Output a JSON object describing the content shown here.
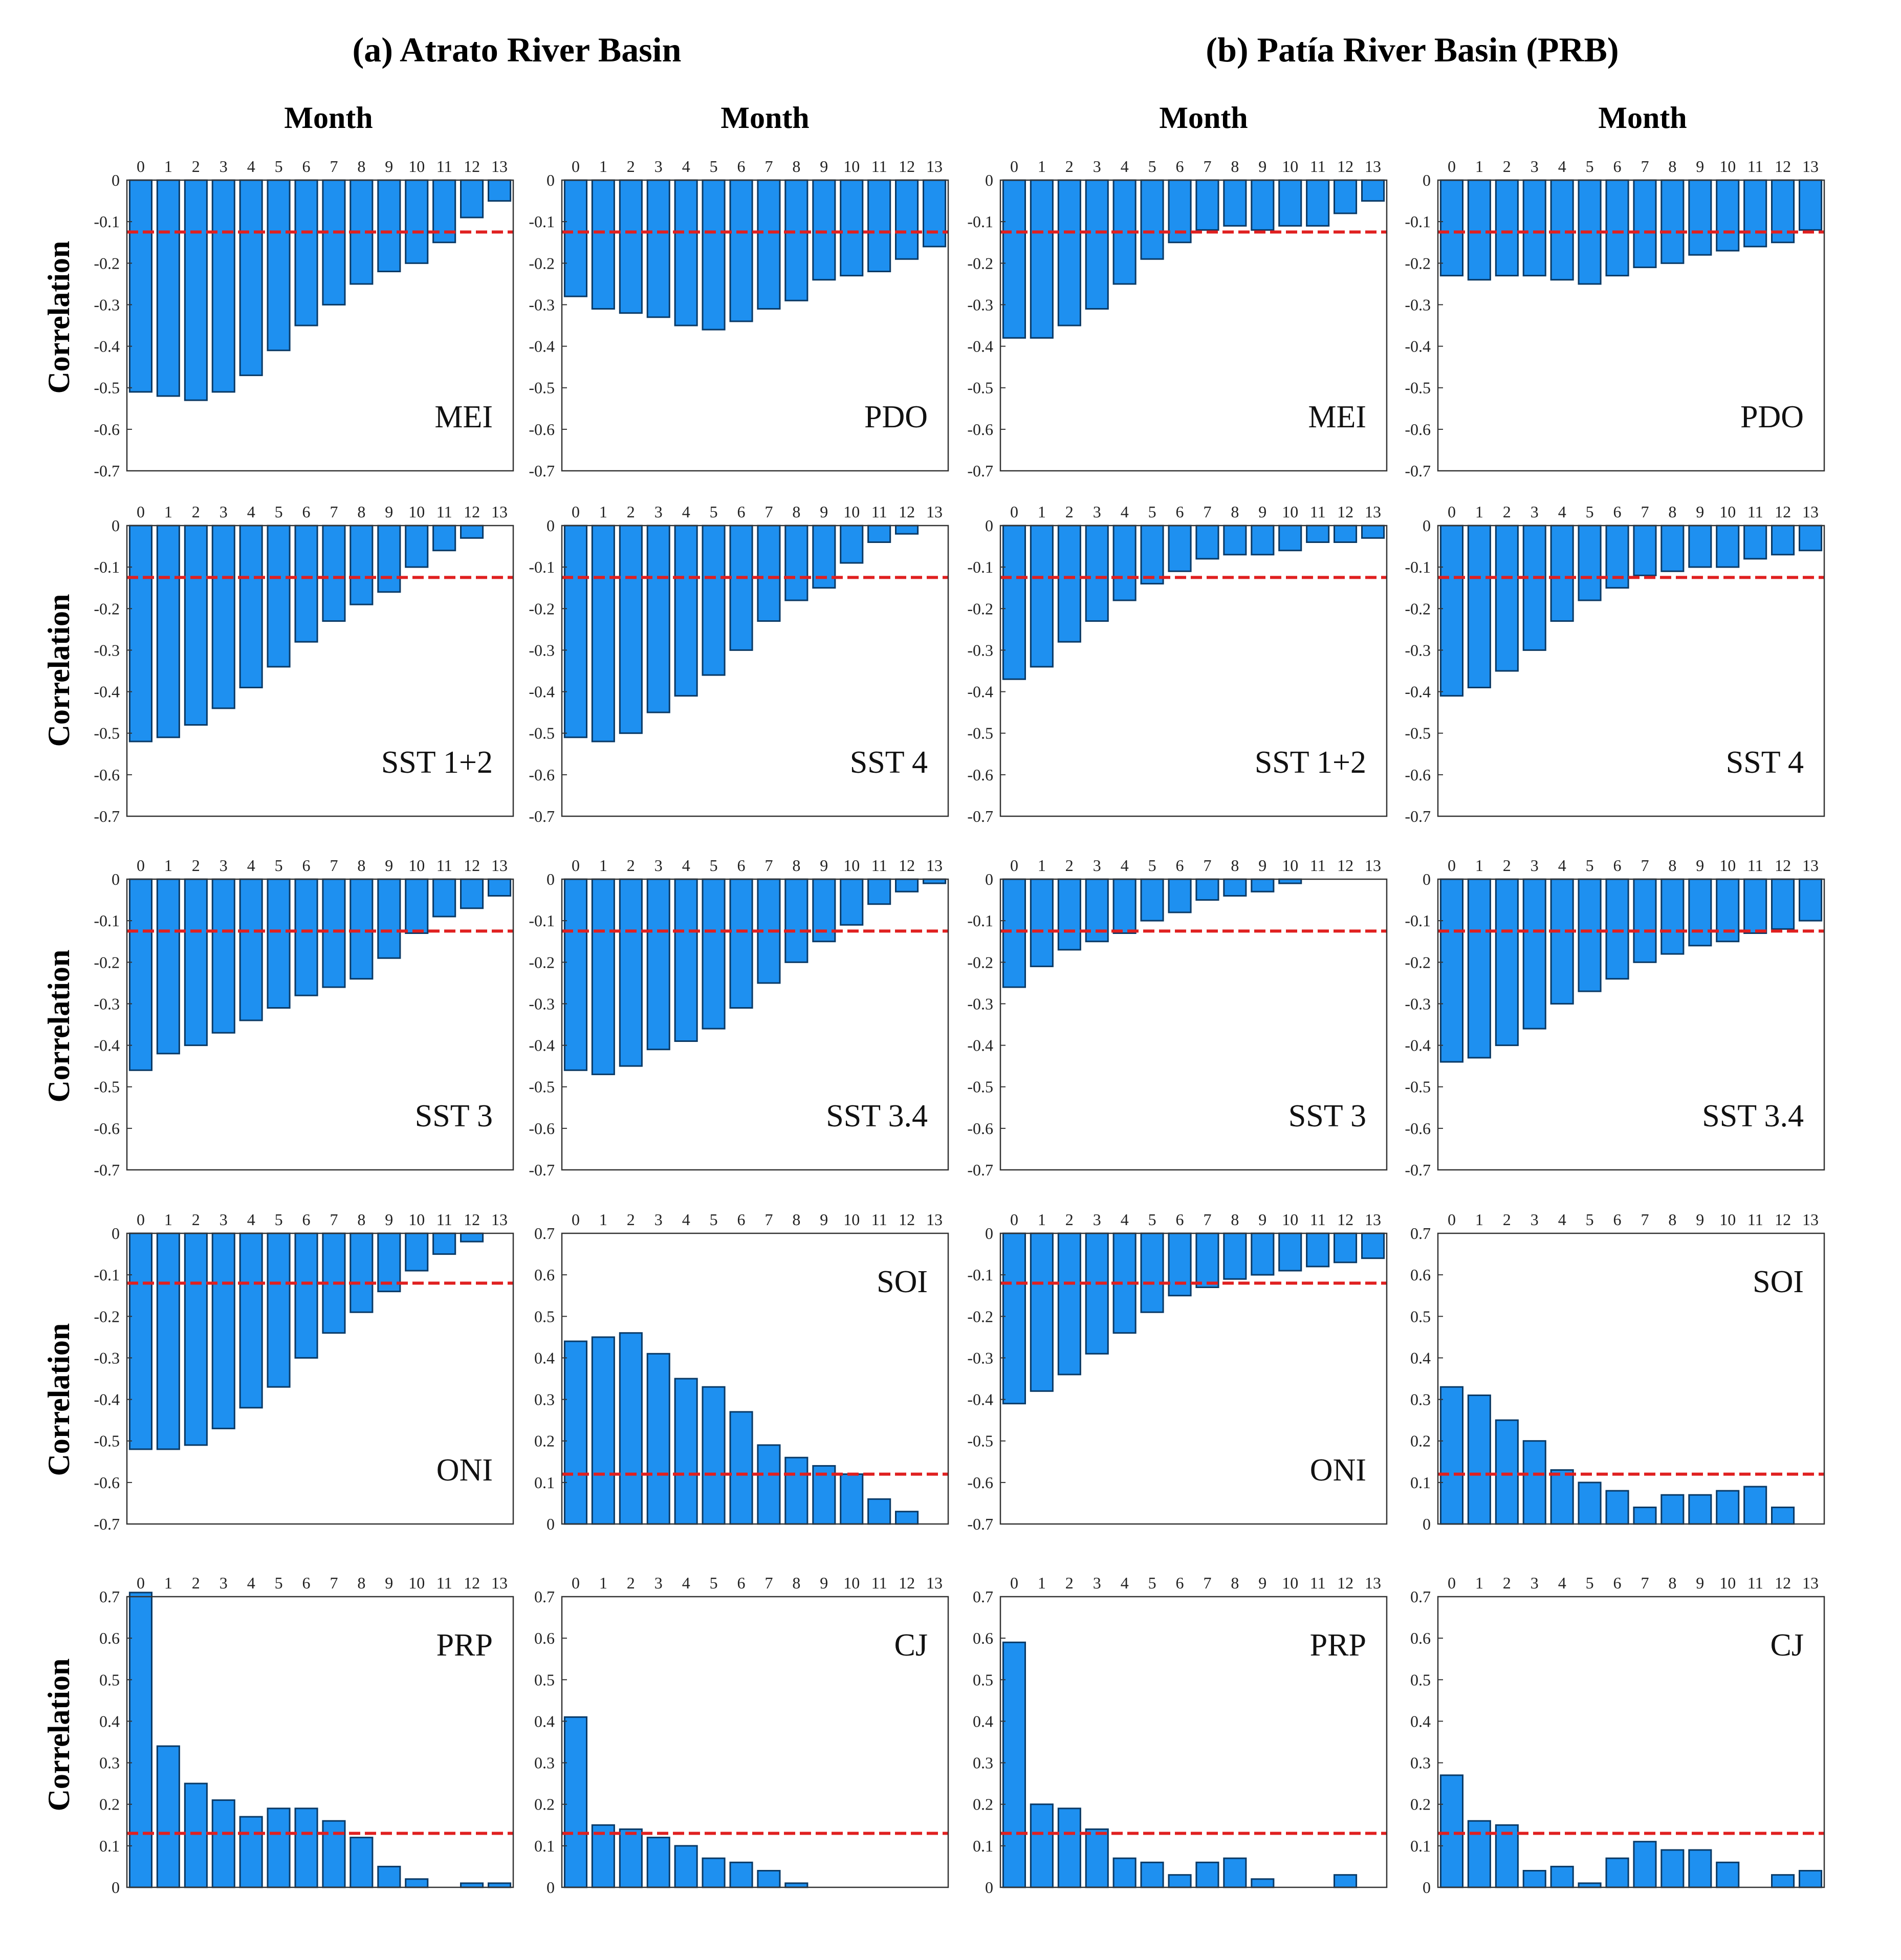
{
  "figure": {
    "left_title": "(a) Atrato River Basin",
    "right_title": "(b) Patía River Basin (PRB)",
    "column_xlabel": "Month",
    "row_ylabel": "Correlation",
    "bar_color": "#1e90f0",
    "bar_edge_color": "#0a3a66",
    "threshold_color": "#e02020"
  },
  "chart_data": [
    {
      "type": "bar",
      "basin": "Atrato River Basin",
      "title": "MEI",
      "xlabel": "Month",
      "ylabel": "Correlation",
      "categories": [
        "0",
        "1",
        "2",
        "3",
        "4",
        "5",
        "6",
        "7",
        "8",
        "9",
        "10",
        "11",
        "12",
        "13"
      ],
      "values": [
        -0.51,
        -0.52,
        -0.53,
        -0.51,
        -0.47,
        -0.41,
        -0.35,
        -0.3,
        -0.25,
        -0.22,
        -0.2,
        -0.15,
        -0.09,
        -0.05
      ],
      "ylim": [
        -0.7,
        0
      ],
      "yticks": [
        "0",
        "-0.1",
        "-0.2",
        "-0.3",
        "-0.4",
        "-0.5",
        "-0.6",
        "-0.7"
      ],
      "threshold": -0.125,
      "label_position": "bottom-right"
    },
    {
      "type": "bar",
      "basin": "Atrato River Basin",
      "title": "PDO",
      "xlabel": "Month",
      "ylabel": "Correlation",
      "categories": [
        "0",
        "1",
        "2",
        "3",
        "4",
        "5",
        "6",
        "7",
        "8",
        "9",
        "10",
        "11",
        "12",
        "13"
      ],
      "values": [
        -0.28,
        -0.31,
        -0.32,
        -0.33,
        -0.35,
        -0.36,
        -0.34,
        -0.31,
        -0.29,
        -0.24,
        -0.23,
        -0.22,
        -0.19,
        -0.16
      ],
      "ylim": [
        -0.7,
        0
      ],
      "yticks": [
        "0",
        "-0.1",
        "-0.2",
        "-0.3",
        "-0.4",
        "-0.5",
        "-0.6",
        "-0.7"
      ],
      "threshold": -0.125,
      "label_position": "bottom-right"
    },
    {
      "type": "bar",
      "basin": "Patía River Basin (PRB)",
      "title": "MEI",
      "xlabel": "Month",
      "ylabel": "Correlation",
      "categories": [
        "0",
        "1",
        "2",
        "3",
        "4",
        "5",
        "6",
        "7",
        "8",
        "9",
        "10",
        "11",
        "12",
        "13"
      ],
      "values": [
        -0.38,
        -0.38,
        -0.35,
        -0.31,
        -0.25,
        -0.19,
        -0.15,
        -0.12,
        -0.11,
        -0.12,
        -0.11,
        -0.11,
        -0.08,
        -0.05
      ],
      "ylim": [
        -0.7,
        0
      ],
      "yticks": [
        "0",
        "-0.1",
        "-0.2",
        "-0.3",
        "-0.4",
        "-0.5",
        "-0.6",
        "-0.7"
      ],
      "threshold": -0.125,
      "label_position": "bottom-right"
    },
    {
      "type": "bar",
      "basin": "Patía River Basin (PRB)",
      "title": "PDO",
      "xlabel": "Month",
      "ylabel": "Correlation",
      "categories": [
        "0",
        "1",
        "2",
        "3",
        "4",
        "5",
        "6",
        "7",
        "8",
        "9",
        "10",
        "11",
        "12",
        "13"
      ],
      "values": [
        -0.23,
        -0.24,
        -0.23,
        -0.23,
        -0.24,
        -0.25,
        -0.23,
        -0.21,
        -0.2,
        -0.18,
        -0.17,
        -0.16,
        -0.15,
        -0.12
      ],
      "ylim": [
        -0.7,
        0
      ],
      "yticks": [
        "0",
        "-0.1",
        "-0.2",
        "-0.3",
        "-0.4",
        "-0.5",
        "-0.6",
        "-0.7"
      ],
      "threshold": -0.125,
      "label_position": "bottom-right"
    },
    {
      "type": "bar",
      "basin": "Atrato River Basin",
      "title": "SST 1+2",
      "xlabel": "Month",
      "ylabel": "Correlation",
      "categories": [
        "0",
        "1",
        "2",
        "3",
        "4",
        "5",
        "6",
        "7",
        "8",
        "9",
        "10",
        "11",
        "12",
        "13"
      ],
      "values": [
        -0.52,
        -0.51,
        -0.48,
        -0.44,
        -0.39,
        -0.34,
        -0.28,
        -0.23,
        -0.19,
        -0.16,
        -0.1,
        -0.06,
        -0.03,
        0
      ],
      "ylim": [
        -0.7,
        0
      ],
      "yticks": [
        "0",
        "-0.1",
        "-0.2",
        "-0.3",
        "-0.4",
        "-0.5",
        "-0.6",
        "-0.7"
      ],
      "threshold": -0.125,
      "label_position": "bottom-right"
    },
    {
      "type": "bar",
      "basin": "Atrato River Basin",
      "title": "SST 4",
      "xlabel": "Month",
      "ylabel": "Correlation",
      "categories": [
        "0",
        "1",
        "2",
        "3",
        "4",
        "5",
        "6",
        "7",
        "8",
        "9",
        "10",
        "11",
        "12",
        "13"
      ],
      "values": [
        -0.51,
        -0.52,
        -0.5,
        -0.45,
        -0.41,
        -0.36,
        -0.3,
        -0.23,
        -0.18,
        -0.15,
        -0.09,
        -0.04,
        -0.02,
        0
      ],
      "ylim": [
        -0.7,
        0
      ],
      "yticks": [
        "0",
        "-0.1",
        "-0.2",
        "-0.3",
        "-0.4",
        "-0.5",
        "-0.6",
        "-0.7"
      ],
      "threshold": -0.125,
      "label_position": "bottom-right"
    },
    {
      "type": "bar",
      "basin": "Patía River Basin (PRB)",
      "title": "SST 1+2",
      "xlabel": "Month",
      "ylabel": "Correlation",
      "categories": [
        "0",
        "1",
        "2",
        "3",
        "4",
        "5",
        "6",
        "7",
        "8",
        "9",
        "10",
        "11",
        "12",
        "13"
      ],
      "values": [
        -0.37,
        -0.34,
        -0.28,
        -0.23,
        -0.18,
        -0.14,
        -0.11,
        -0.08,
        -0.07,
        -0.07,
        -0.06,
        -0.04,
        -0.04,
        -0.03
      ],
      "ylim": [
        -0.7,
        0
      ],
      "yticks": [
        "0",
        "-0.1",
        "-0.2",
        "-0.3",
        "-0.4",
        "-0.5",
        "-0.6",
        "-0.7"
      ],
      "threshold": -0.125,
      "label_position": "bottom-right"
    },
    {
      "type": "bar",
      "basin": "Patía River Basin (PRB)",
      "title": "SST 4",
      "xlabel": "Month",
      "ylabel": "Correlation",
      "categories": [
        "0",
        "1",
        "2",
        "3",
        "4",
        "5",
        "6",
        "7",
        "8",
        "9",
        "10",
        "11",
        "12",
        "13"
      ],
      "values": [
        -0.41,
        -0.39,
        -0.35,
        -0.3,
        -0.23,
        -0.18,
        -0.15,
        -0.12,
        -0.11,
        -0.1,
        -0.1,
        -0.08,
        -0.07,
        -0.06
      ],
      "ylim": [
        -0.7,
        0
      ],
      "yticks": [
        "0",
        "-0.1",
        "-0.2",
        "-0.3",
        "-0.4",
        "-0.5",
        "-0.6",
        "-0.7"
      ],
      "threshold": -0.125,
      "label_position": "bottom-right"
    },
    {
      "type": "bar",
      "basin": "Atrato River Basin",
      "title": "SST 3",
      "xlabel": "Month",
      "ylabel": "Correlation",
      "categories": [
        "0",
        "1",
        "2",
        "3",
        "4",
        "5",
        "6",
        "7",
        "8",
        "9",
        "10",
        "11",
        "12",
        "13"
      ],
      "values": [
        -0.46,
        -0.42,
        -0.4,
        -0.37,
        -0.34,
        -0.31,
        -0.28,
        -0.26,
        -0.24,
        -0.19,
        -0.13,
        -0.09,
        -0.07,
        -0.04
      ],
      "ylim": [
        -0.7,
        0
      ],
      "yticks": [
        "0",
        "-0.1",
        "-0.2",
        "-0.3",
        "-0.4",
        "-0.5",
        "-0.6",
        "-0.7"
      ],
      "threshold": -0.125,
      "label_position": "bottom-right"
    },
    {
      "type": "bar",
      "basin": "Atrato River Basin",
      "title": "SST 3.4",
      "xlabel": "Month",
      "ylabel": "Correlation",
      "categories": [
        "0",
        "1",
        "2",
        "3",
        "4",
        "5",
        "6",
        "7",
        "8",
        "9",
        "10",
        "11",
        "12",
        "13"
      ],
      "values": [
        -0.46,
        -0.47,
        -0.45,
        -0.41,
        -0.39,
        -0.36,
        -0.31,
        -0.25,
        -0.2,
        -0.15,
        -0.11,
        -0.06,
        -0.03,
        -0.01
      ],
      "ylim": [
        -0.7,
        0
      ],
      "yticks": [
        "0",
        "-0.1",
        "-0.2",
        "-0.3",
        "-0.4",
        "-0.5",
        "-0.6",
        "-0.7"
      ],
      "threshold": -0.125,
      "label_position": "bottom-right"
    },
    {
      "type": "bar",
      "basin": "Patía River Basin (PRB)",
      "title": "SST 3",
      "xlabel": "Month",
      "ylabel": "Correlation",
      "categories": [
        "0",
        "1",
        "2",
        "3",
        "4",
        "5",
        "6",
        "7",
        "8",
        "9",
        "10",
        "11",
        "12",
        "13"
      ],
      "values": [
        -0.26,
        -0.21,
        -0.17,
        -0.15,
        -0.13,
        -0.1,
        -0.08,
        -0.05,
        -0.04,
        -0.03,
        -0.01,
        0,
        0,
        0
      ],
      "ylim": [
        -0.7,
        0
      ],
      "yticks": [
        "0",
        "-0.1",
        "-0.2",
        "-0.3",
        "-0.4",
        "-0.5",
        "-0.6",
        "-0.7"
      ],
      "threshold": -0.125,
      "label_position": "bottom-right"
    },
    {
      "type": "bar",
      "basin": "Patía River Basin (PRB)",
      "title": "SST 3.4",
      "xlabel": "Month",
      "ylabel": "Correlation",
      "categories": [
        "0",
        "1",
        "2",
        "3",
        "4",
        "5",
        "6",
        "7",
        "8",
        "9",
        "10",
        "11",
        "12",
        "13"
      ],
      "values": [
        -0.44,
        -0.43,
        -0.4,
        -0.36,
        -0.3,
        -0.27,
        -0.24,
        -0.2,
        -0.18,
        -0.16,
        -0.15,
        -0.13,
        -0.12,
        -0.1
      ],
      "ylim": [
        -0.7,
        0
      ],
      "yticks": [
        "0",
        "-0.1",
        "-0.2",
        "-0.3",
        "-0.4",
        "-0.5",
        "-0.6",
        "-0.7"
      ],
      "threshold": -0.125,
      "label_position": "bottom-right"
    },
    {
      "type": "bar",
      "basin": "Atrato River Basin",
      "title": "ONI",
      "xlabel": "Month",
      "ylabel": "Correlation",
      "categories": [
        "0",
        "1",
        "2",
        "3",
        "4",
        "5",
        "6",
        "7",
        "8",
        "9",
        "10",
        "11",
        "12",
        "13"
      ],
      "values": [
        -0.52,
        -0.52,
        -0.51,
        -0.47,
        -0.42,
        -0.37,
        -0.3,
        -0.24,
        -0.19,
        -0.14,
        -0.09,
        -0.05,
        -0.02,
        0
      ],
      "ylim": [
        -0.7,
        0
      ],
      "yticks": [
        "0",
        "-0.1",
        "-0.2",
        "-0.3",
        "-0.4",
        "-0.5",
        "-0.6",
        "-0.7"
      ],
      "threshold": -0.12,
      "label_position": "bottom-right"
    },
    {
      "type": "bar",
      "basin": "Atrato River Basin",
      "title": "SOI",
      "xlabel": "Month",
      "ylabel": "Correlation",
      "categories": [
        "0",
        "1",
        "2",
        "3",
        "4",
        "5",
        "6",
        "7",
        "8",
        "9",
        "10",
        "11",
        "12",
        "13"
      ],
      "values": [
        0.44,
        0.45,
        0.46,
        0.41,
        0.35,
        0.33,
        0.27,
        0.19,
        0.16,
        0.14,
        0.12,
        0.06,
        0.03,
        0
      ],
      "ylim": [
        0,
        0.7
      ],
      "yticks": [
        "0.7",
        "0.6",
        "0.5",
        "0.4",
        "0.3",
        "0.2",
        "0.1",
        "0"
      ],
      "threshold": 0.12,
      "label_position": "top-right"
    },
    {
      "type": "bar",
      "basin": "Patía River Basin (PRB)",
      "title": "ONI",
      "xlabel": "Month",
      "ylabel": "Correlation",
      "categories": [
        "0",
        "1",
        "2",
        "3",
        "4",
        "5",
        "6",
        "7",
        "8",
        "9",
        "10",
        "11",
        "12",
        "13"
      ],
      "values": [
        -0.41,
        -0.38,
        -0.34,
        -0.29,
        -0.24,
        -0.19,
        -0.15,
        -0.13,
        -0.11,
        -0.1,
        -0.09,
        -0.08,
        -0.07,
        -0.06
      ],
      "ylim": [
        -0.7,
        0
      ],
      "yticks": [
        "0",
        "-0.1",
        "-0.2",
        "-0.3",
        "-0.4",
        "-0.5",
        "-0.6",
        "-0.7"
      ],
      "threshold": -0.12,
      "label_position": "bottom-right"
    },
    {
      "type": "bar",
      "basin": "Patía River Basin (PRB)",
      "title": "SOI",
      "xlabel": "Month",
      "ylabel": "Correlation",
      "categories": [
        "0",
        "1",
        "2",
        "3",
        "4",
        "5",
        "6",
        "7",
        "8",
        "9",
        "10",
        "11",
        "12",
        "13"
      ],
      "values": [
        0.33,
        0.31,
        0.25,
        0.2,
        0.13,
        0.1,
        0.08,
        0.04,
        0.07,
        0.07,
        0.08,
        0.09,
        0.04,
        0
      ],
      "ylim": [
        0,
        0.7
      ],
      "yticks": [
        "0.7",
        "0.6",
        "0.5",
        "0.4",
        "0.3",
        "0.2",
        "0.1",
        "0"
      ],
      "threshold": 0.12,
      "label_position": "top-right"
    },
    {
      "type": "bar",
      "basin": "Atrato River Basin",
      "title": "PRP",
      "xlabel": "Month",
      "ylabel": "Correlation",
      "categories": [
        "0",
        "1",
        "2",
        "3",
        "4",
        "5",
        "6",
        "7",
        "8",
        "9",
        "10",
        "11",
        "12",
        "13"
      ],
      "values": [
        0.71,
        0.34,
        0.25,
        0.21,
        0.17,
        0.19,
        0.19,
        0.16,
        0.12,
        0.05,
        0.02,
        0,
        0.01,
        0.01
      ],
      "ylim": [
        0,
        0.7
      ],
      "yticks": [
        "0.7",
        "0.6",
        "0.5",
        "0.4",
        "0.3",
        "0.2",
        "0.1",
        "0"
      ],
      "threshold": 0.13,
      "label_position": "top-right"
    },
    {
      "type": "bar",
      "basin": "Atrato River Basin",
      "title": "CJ",
      "xlabel": "Month",
      "ylabel": "Correlation",
      "categories": [
        "0",
        "1",
        "2",
        "3",
        "4",
        "5",
        "6",
        "7",
        "8",
        "9",
        "10",
        "11",
        "12",
        "13"
      ],
      "values": [
        0.41,
        0.15,
        0.14,
        0.12,
        0.1,
        0.07,
        0.06,
        0.04,
        0.01,
        0,
        0,
        0,
        0,
        0
      ],
      "ylim": [
        0,
        0.7
      ],
      "yticks": [
        "0.7",
        "0.6",
        "0.5",
        "0.4",
        "0.3",
        "0.2",
        "0.1",
        "0"
      ],
      "threshold": 0.13,
      "label_position": "top-right"
    },
    {
      "type": "bar",
      "basin": "Patía River Basin (PRB)",
      "title": "PRP",
      "xlabel": "Month",
      "ylabel": "Correlation",
      "categories": [
        "0",
        "1",
        "2",
        "3",
        "4",
        "5",
        "6",
        "7",
        "8",
        "9",
        "10",
        "11",
        "12",
        "13"
      ],
      "values": [
        0.59,
        0.2,
        0.19,
        0.14,
        0.07,
        0.06,
        0.03,
        0.06,
        0.07,
        0.02,
        0,
        0,
        0.03,
        0
      ],
      "ylim": [
        0,
        0.7
      ],
      "yticks": [
        "0.7",
        "0.6",
        "0.5",
        "0.4",
        "0.3",
        "0.2",
        "0.1",
        "0"
      ],
      "threshold": 0.13,
      "label_position": "top-right"
    },
    {
      "type": "bar",
      "basin": "Patía River Basin (PRB)",
      "title": "CJ",
      "xlabel": "Month",
      "ylabel": "Correlation",
      "categories": [
        "0",
        "1",
        "2",
        "3",
        "4",
        "5",
        "6",
        "7",
        "8",
        "9",
        "10",
        "11",
        "12",
        "13"
      ],
      "values": [
        0.27,
        0.16,
        0.15,
        0.04,
        0.05,
        0.01,
        0.07,
        0.11,
        0.09,
        0.09,
        0.06,
        0,
        0.03,
        0.04
      ],
      "ylim": [
        0,
        0.7
      ],
      "yticks": [
        "0.7",
        "0.6",
        "0.5",
        "0.4",
        "0.3",
        "0.2",
        "0.1",
        "0"
      ],
      "threshold": 0.13,
      "label_position": "top-right"
    }
  ]
}
